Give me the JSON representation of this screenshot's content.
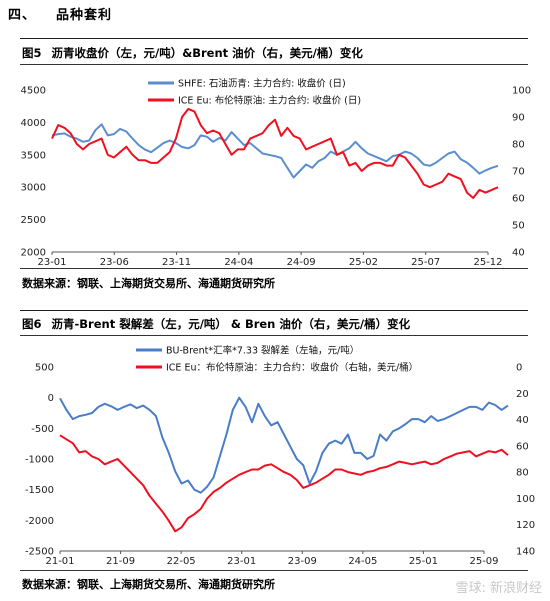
{
  "section": {
    "num": "四、",
    "title": "品种套利"
  },
  "fig5": {
    "label": "图5",
    "title": "沥青收盘价（左，元/吨）&Brent 油价（右，美元/桶）变化",
    "source": "数据来源：钢联、上海期货交易所、海通期货研究所",
    "chart_data": {
      "type": "line",
      "x_ticks": [
        "23-01",
        "23-06",
        "23-11",
        "24-04",
        "24-09",
        "25-02",
        "25-07",
        "25-12"
      ],
      "y_left_ticks": [
        "4500",
        "4000",
        "3500",
        "3000",
        "2500",
        "2000"
      ],
      "y_right_ticks": [
        "100",
        "90",
        "80",
        "70",
        "60",
        "50",
        "40"
      ],
      "ylim_left": [
        2000,
        4500
      ],
      "ylim_right": [
        40,
        100
      ],
      "series": [
        {
          "name": "SHFE: 石油沥青: 主力合约: 收盘价 (日)",
          "color": "#5b8ed0",
          "axis": "left",
          "values": [
            3800,
            3820,
            3830,
            3780,
            3750,
            3700,
            3720,
            3880,
            3970,
            3800,
            3820,
            3900,
            3860,
            3750,
            3650,
            3580,
            3540,
            3610,
            3680,
            3720,
            3680,
            3620,
            3600,
            3650,
            3800,
            3780,
            3700,
            3760,
            3720,
            3850,
            3750,
            3650,
            3680,
            3600,
            3520,
            3500,
            3480,
            3450,
            3300,
            3150,
            3250,
            3350,
            3300,
            3400,
            3450,
            3550,
            3500,
            3550,
            3600,
            3700,
            3600,
            3520,
            3480,
            3440,
            3400,
            3480,
            3500,
            3550,
            3520,
            3450,
            3350,
            3330,
            3380,
            3450,
            3520,
            3550,
            3430,
            3380,
            3300,
            3210,
            3260,
            3300,
            3330
          ]
        },
        {
          "name": "ICE Eu: 布伦特原油: 主力合约: 收盘价 (日)",
          "color": "#f01020",
          "axis": "right",
          "values": [
            82,
            87,
            86,
            84,
            80,
            78,
            80,
            81,
            82,
            76,
            75,
            77,
            79,
            76,
            74,
            74,
            73,
            73,
            75,
            77,
            82,
            90,
            93,
            92,
            87,
            84,
            85,
            84,
            80,
            76,
            78,
            78,
            82,
            83,
            84,
            87,
            89,
            83,
            86,
            83,
            82,
            78,
            79,
            80,
            81,
            82,
            76,
            77,
            72,
            73,
            70,
            72,
            73,
            73,
            72,
            72,
            76,
            75,
            72,
            69,
            65,
            64,
            65,
            66,
            69,
            68,
            67,
            62,
            60,
            63,
            62,
            63,
            64
          ]
        }
      ]
    }
  },
  "fig6": {
    "label": "图6",
    "title": "沥青-Brent 裂解差（左，元/吨）  & Bren 油价（右，美元/桶）变化",
    "source": "数据来源：钢联、上海期货交易所、海通期货研究所",
    "chart_data": {
      "type": "line",
      "x_ticks": [
        "21-01",
        "21-09",
        "22-05",
        "23-01",
        "23-09",
        "24-05",
        "25-01",
        "25-09"
      ],
      "y_left_ticks": [
        "500",
        "0",
        "-500",
        "-1000",
        "-1500",
        "-2000",
        "-2500"
      ],
      "y_right_ticks": [
        "0",
        "20",
        "40",
        "60",
        "80",
        "100",
        "120",
        "140"
      ],
      "ylim_left": [
        -2500,
        500
      ],
      "ylim_right": [
        140,
        0
      ],
      "right_axis_inverted": true,
      "series": [
        {
          "name": "BU-Brent*汇率*7.33 裂解差（左轴，元/吨）",
          "color": "#4a7dc9",
          "axis": "left",
          "values": [
            -10,
            -200,
            -350,
            -300,
            -280,
            -250,
            -150,
            -100,
            -140,
            -200,
            -150,
            -110,
            -170,
            -130,
            -200,
            -300,
            -650,
            -900,
            -1200,
            -1400,
            -1350,
            -1500,
            -1550,
            -1450,
            -1300,
            -950,
            -600,
            -200,
            0,
            -150,
            -400,
            -100,
            -300,
            -450,
            -400,
            -600,
            -800,
            -1000,
            -1100,
            -1400,
            -1200,
            -900,
            -750,
            -700,
            -750,
            -600,
            -900,
            -900,
            -1000,
            -950,
            -600,
            -700,
            -550,
            -500,
            -430,
            -350,
            -350,
            -400,
            -300,
            -380,
            -350,
            -300,
            -250,
            -200,
            -150,
            -150,
            -200,
            -80,
            -120,
            -200,
            -130
          ]
        },
        {
          "name": "ICE Eu：布伦特原油：主力合约：收盘价（右轴，美元/桶）",
          "color": "#f01020",
          "axis": "right",
          "values": [
            52,
            55,
            58,
            65,
            64,
            68,
            70,
            74,
            72,
            70,
            75,
            80,
            85,
            90,
            98,
            104,
            110,
            117,
            125,
            122,
            115,
            112,
            108,
            100,
            95,
            92,
            88,
            85,
            82,
            80,
            78,
            78,
            75,
            74,
            77,
            80,
            82,
            86,
            92,
            90,
            88,
            85,
            82,
            78,
            78,
            80,
            81,
            82,
            80,
            79,
            77,
            76,
            74,
            72,
            73,
            74,
            73,
            72,
            74,
            73,
            70,
            68,
            66,
            65,
            64,
            68,
            66,
            64,
            65,
            63,
            67
          ]
        }
      ]
    }
  },
  "watermark": "雪球: 新浪财经"
}
